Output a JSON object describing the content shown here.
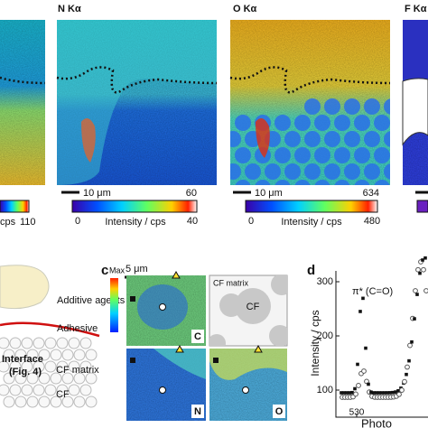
{
  "panel_a": {
    "partial_map": {
      "colorbar_unit": "cps",
      "colorbar_max": 110
    },
    "n_map": {
      "title": "N Kα",
      "scale_bar": "10 μm",
      "colorbar_top": 60,
      "colorbar_min": 0,
      "colorbar_label": "Intensity / cps",
      "colorbar_max": 40
    },
    "o_map": {
      "title": "O Kα",
      "scale_bar": "10 μm",
      "colorbar_top": 634,
      "colorbar_min": 0,
      "colorbar_label": "Intensity / cps",
      "colorbar_max": 480
    },
    "f_map": {
      "title": "F Kα"
    }
  },
  "panel_b": {
    "labels": [
      "Additive agents",
      "Adhesive",
      "CF matrix",
      "CF"
    ],
    "interface": "Interface",
    "interface_ref": "(Fig. 4)"
  },
  "panel_c": {
    "letter": "c",
    "scale_bar": "5 μm",
    "colorbar_max": "Max",
    "schematic_matrix": "CF matrix",
    "schematic_cf": "CF",
    "maps": [
      "C",
      "N",
      "O"
    ]
  },
  "panel_d": {
    "letter": "d",
    "peak_label": "π* (C=O)",
    "y_label": "Intensity / cps",
    "yticks": [
      300,
      200,
      100
    ],
    "xticks": [
      530
    ],
    "x_label": "Photo"
  }
}
